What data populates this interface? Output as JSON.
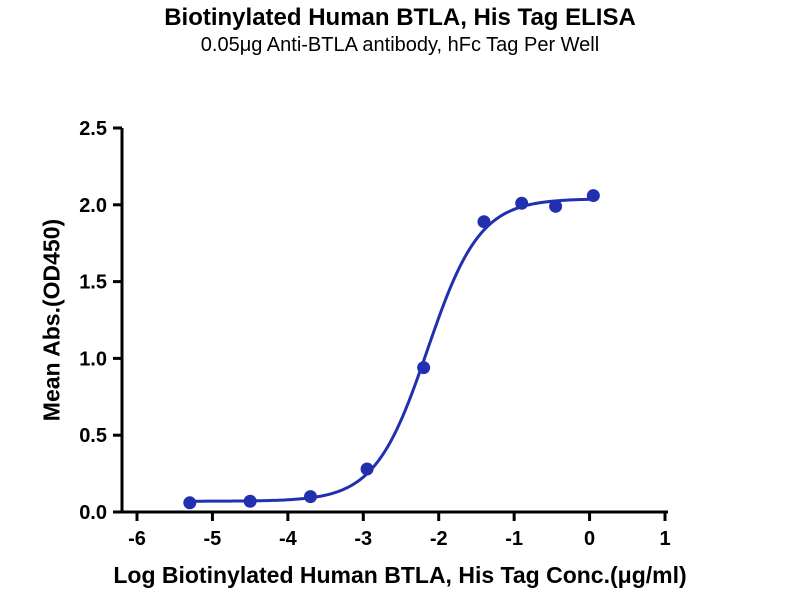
{
  "chart_data": {
    "type": "scatter",
    "title": "Biotinylated Human BTLA, His Tag ELISA",
    "subtitle": "0.05μg Anti-BTLA antibody, hFc Tag Per Well",
    "xlabel": "Log Biotinylated Human BTLA, His Tag Conc.(μg/ml)",
    "ylabel": "Mean Abs.(OD450)",
    "xlim": [
      -6,
      1
    ],
    "ylim": [
      0,
      2.5
    ],
    "x_tick_values": [
      -6,
      -5,
      -4,
      -3,
      -2,
      -1,
      0,
      1
    ],
    "x_tick_labels": [
      "-6",
      "-5",
      "-4",
      "-3",
      "-2",
      "-1",
      "0",
      "1"
    ],
    "y_tick_values": [
      0,
      0.5,
      1.0,
      1.5,
      2.0,
      2.5
    ],
    "y_tick_labels": [
      "0.0",
      "0.5",
      "1.0",
      "1.5",
      "2.0",
      "2.5"
    ],
    "points": {
      "x": [
        -5.3,
        -4.5,
        -3.7,
        -2.95,
        -2.2,
        -1.4,
        -0.9,
        -0.45,
        0.05
      ],
      "y": [
        0.06,
        0.07,
        0.1,
        0.28,
        0.94,
        1.89,
        2.01,
        1.99,
        2.06
      ]
    },
    "curve_fit": {
      "model": "4PL",
      "bottom": 0.07,
      "top": 2.04,
      "log_ec50": -2.15,
      "hill_slope": 1.25,
      "x_start": -5.32,
      "x_end": 0.08
    },
    "grid": false,
    "legend": "none",
    "colors": {
      "series": "#2230b0",
      "axis": "#000000",
      "text": "#000000"
    }
  }
}
